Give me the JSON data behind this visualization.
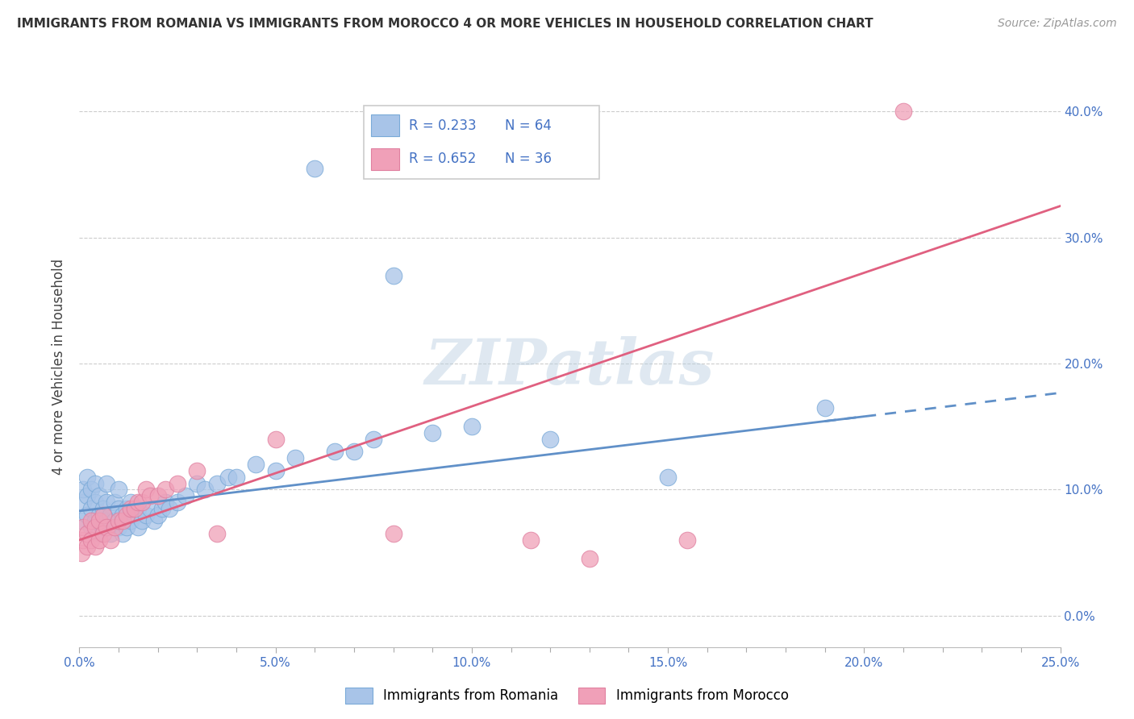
{
  "title": "IMMIGRANTS FROM ROMANIA VS IMMIGRANTS FROM MOROCCO 4 OR MORE VEHICLES IN HOUSEHOLD CORRELATION CHART",
  "source": "Source: ZipAtlas.com",
  "ylabel": "4 or more Vehicles in Household",
  "romania_R": 0.233,
  "romania_N": 64,
  "morocco_R": 0.652,
  "morocco_N": 36,
  "romania_color": "#a8c4e8",
  "morocco_color": "#f0a0b8",
  "romania_line_color": "#6090c8",
  "morocco_line_color": "#e06080",
  "romania_edge_color": "#7aaad8",
  "morocco_edge_color": "#e080a0",
  "xlim": [
    0.0,
    0.25
  ],
  "ylim": [
    -0.025,
    0.42
  ],
  "x_ticks": [
    0.0,
    0.05,
    0.1,
    0.15,
    0.2,
    0.25
  ],
  "y_ticks": [
    0.0,
    0.1,
    0.2,
    0.3,
    0.4
  ],
  "watermark_text": "ZIPatlas",
  "legend_text_color": "#4472c4",
  "title_fontsize": 11,
  "source_fontsize": 10,
  "tick_fontsize": 11,
  "ylabel_fontsize": 12,
  "romania_scatter_x": [
    0.0005,
    0.001,
    0.001,
    0.002,
    0.002,
    0.002,
    0.003,
    0.003,
    0.003,
    0.004,
    0.004,
    0.004,
    0.005,
    0.005,
    0.005,
    0.006,
    0.006,
    0.007,
    0.007,
    0.007,
    0.008,
    0.008,
    0.009,
    0.009,
    0.01,
    0.01,
    0.01,
    0.011,
    0.011,
    0.012,
    0.012,
    0.013,
    0.013,
    0.014,
    0.015,
    0.015,
    0.016,
    0.017,
    0.018,
    0.019,
    0.02,
    0.021,
    0.022,
    0.023,
    0.025,
    0.027,
    0.03,
    0.032,
    0.035,
    0.038,
    0.04,
    0.045,
    0.05,
    0.055,
    0.06,
    0.065,
    0.07,
    0.075,
    0.08,
    0.09,
    0.1,
    0.12,
    0.15,
    0.19
  ],
  "romania_scatter_y": [
    0.075,
    0.09,
    0.1,
    0.08,
    0.095,
    0.11,
    0.07,
    0.085,
    0.1,
    0.075,
    0.09,
    0.105,
    0.065,
    0.08,
    0.095,
    0.07,
    0.085,
    0.075,
    0.09,
    0.105,
    0.065,
    0.08,
    0.075,
    0.09,
    0.07,
    0.085,
    0.1,
    0.065,
    0.08,
    0.07,
    0.085,
    0.075,
    0.09,
    0.08,
    0.07,
    0.085,
    0.075,
    0.08,
    0.085,
    0.075,
    0.08,
    0.085,
    0.09,
    0.085,
    0.09,
    0.095,
    0.105,
    0.1,
    0.105,
    0.11,
    0.11,
    0.12,
    0.115,
    0.125,
    0.355,
    0.13,
    0.13,
    0.14,
    0.27,
    0.145,
    0.15,
    0.14,
    0.11,
    0.165
  ],
  "morocco_scatter_x": [
    0.0005,
    0.001,
    0.001,
    0.002,
    0.002,
    0.003,
    0.003,
    0.004,
    0.004,
    0.005,
    0.005,
    0.006,
    0.006,
    0.007,
    0.008,
    0.009,
    0.01,
    0.011,
    0.012,
    0.013,
    0.014,
    0.015,
    0.016,
    0.017,
    0.018,
    0.02,
    0.022,
    0.025,
    0.03,
    0.035,
    0.05,
    0.08,
    0.115,
    0.13,
    0.155,
    0.21
  ],
  "morocco_scatter_y": [
    0.05,
    0.06,
    0.07,
    0.055,
    0.065,
    0.06,
    0.075,
    0.055,
    0.07,
    0.06,
    0.075,
    0.065,
    0.08,
    0.07,
    0.06,
    0.07,
    0.075,
    0.075,
    0.08,
    0.085,
    0.085,
    0.09,
    0.09,
    0.1,
    0.095,
    0.095,
    0.1,
    0.105,
    0.115,
    0.065,
    0.14,
    0.065,
    0.06,
    0.045,
    0.06,
    0.4
  ],
  "romania_line_x": [
    0.0,
    0.2
  ],
  "romania_line_y": [
    0.083,
    0.158
  ],
  "morocco_line_x": [
    0.0,
    0.25
  ],
  "morocco_line_y": [
    0.06,
    0.325
  ]
}
